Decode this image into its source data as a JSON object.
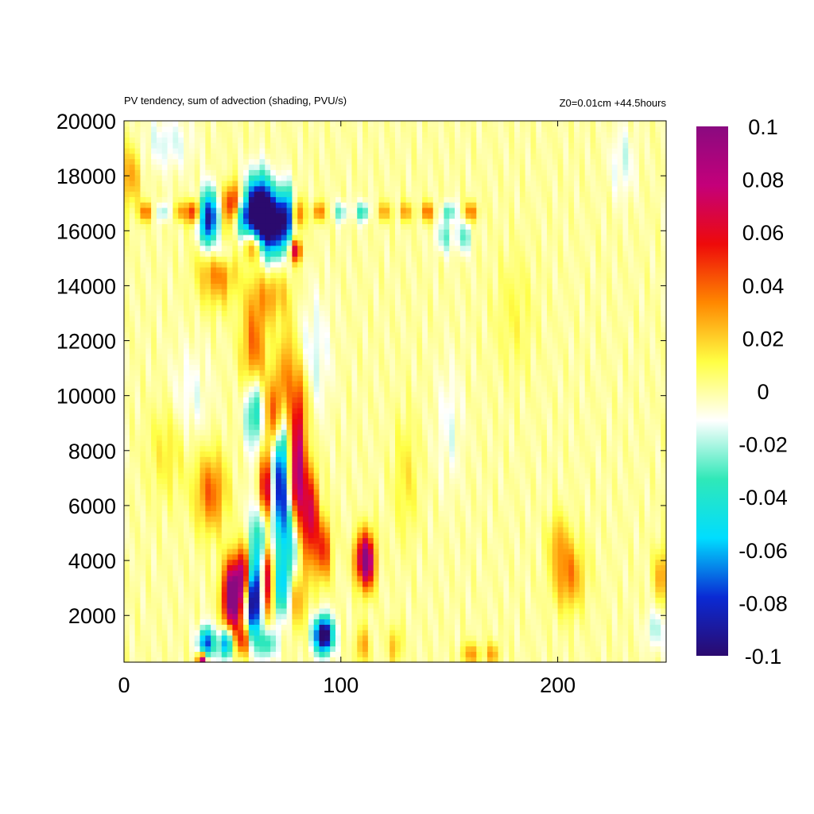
{
  "chart_data": {
    "type": "heatmap",
    "title": "PV tendency, sum of advection (shading, PVU/s)",
    "annotation": "Z0=0.01cm   +44.5hours",
    "xlabel": "",
    "ylabel": "",
    "xlim": [
      0,
      250
    ],
    "ylim": [
      300,
      20000
    ],
    "x_ticks": [
      0,
      100,
      200
    ],
    "x_tick_labels": [
      "0",
      "100",
      "200"
    ],
    "y_ticks": [
      2000,
      4000,
      6000,
      8000,
      10000,
      12000,
      14000,
      16000,
      18000,
      20000
    ],
    "y_tick_labels": [
      "2000",
      "4000",
      "6000",
      "8000",
      "10000",
      "12000",
      "14000",
      "16000",
      "18000",
      "20000"
    ],
    "grid": false,
    "colorbar": {
      "range": [
        -0.1,
        0.1
      ],
      "ticks": [
        0.1,
        0.08,
        0.06,
        0.04,
        0.02,
        0,
        -0.02,
        -0.04,
        -0.06,
        -0.08,
        -0.1
      ],
      "tick_labels": [
        "0.1",
        "0.08",
        "0.06",
        "0.04",
        "0.02",
        "0",
        "-0.02",
        "-0.04",
        "-0.06",
        "-0.08",
        "-0.1"
      ],
      "colors": [
        "#2b0a6e",
        "#0a2ad4",
        "#00ddff",
        "#2fe8b8",
        "#ffffff",
        "#ffff44",
        "#ff8800",
        "#ee0a0a",
        "#c4007a",
        "#8a0a80"
      ]
    },
    "grid_resolution": {
      "nx": 100,
      "ny": 100
    },
    "features": [
      {
        "x": 3,
        "y": 18000,
        "amp": 0.03,
        "sx": 3,
        "sy": 800
      },
      {
        "x": 20,
        "y": 19200,
        "amp": -0.015,
        "sx": 8,
        "sy": 700
      },
      {
        "x": 10,
        "y": 16700,
        "amp": 0.04,
        "sx": 2,
        "sy": 250
      },
      {
        "x": 18,
        "y": 16700,
        "amp": -0.025,
        "sx": 2,
        "sy": 250
      },
      {
        "x": 26,
        "y": 16700,
        "amp": 0.03,
        "sx": 2,
        "sy": 250
      },
      {
        "x": 32,
        "y": 16700,
        "amp": 0.06,
        "sx": 2,
        "sy": 300
      },
      {
        "x": 39,
        "y": 16400,
        "amp": -0.1,
        "sx": 3,
        "sy": 700
      },
      {
        "x": 45,
        "y": 15200,
        "amp": -0.03,
        "sx": 4,
        "sy": 400
      },
      {
        "x": 50,
        "y": 17000,
        "amp": 0.06,
        "sx": 3,
        "sy": 500
      },
      {
        "x": 55,
        "y": 16500,
        "amp": -0.05,
        "sx": 3,
        "sy": 500
      },
      {
        "x": 62,
        "y": 16800,
        "amp": -0.12,
        "sx": 4,
        "sy": 800
      },
      {
        "x": 68,
        "y": 16200,
        "amp": -0.1,
        "sx": 4,
        "sy": 800
      },
      {
        "x": 75,
        "y": 16500,
        "amp": -0.08,
        "sx": 2.5,
        "sy": 700
      },
      {
        "x": 80,
        "y": 16600,
        "amp": 0.05,
        "sx": 2,
        "sy": 400
      },
      {
        "x": 60,
        "y": 15500,
        "amp": 0.05,
        "sx": 3,
        "sy": 400
      },
      {
        "x": 79,
        "y": 15300,
        "amp": 0.07,
        "sx": 2,
        "sy": 300
      },
      {
        "x": 90,
        "y": 16700,
        "amp": 0.04,
        "sx": 2,
        "sy": 250
      },
      {
        "x": 100,
        "y": 16700,
        "amp": -0.03,
        "sx": 2,
        "sy": 250
      },
      {
        "x": 110,
        "y": 16700,
        "amp": -0.04,
        "sx": 2,
        "sy": 250
      },
      {
        "x": 120,
        "y": 16700,
        "amp": 0.03,
        "sx": 2,
        "sy": 250
      },
      {
        "x": 130,
        "y": 16700,
        "amp": 0.03,
        "sx": 2,
        "sy": 250
      },
      {
        "x": 140,
        "y": 16700,
        "amp": 0.04,
        "sx": 2,
        "sy": 250
      },
      {
        "x": 150,
        "y": 16700,
        "amp": -0.035,
        "sx": 2,
        "sy": 250
      },
      {
        "x": 160,
        "y": 16700,
        "amp": 0.04,
        "sx": 2,
        "sy": 250
      },
      {
        "x": 148,
        "y": 15800,
        "amp": -0.025,
        "sx": 3,
        "sy": 400
      },
      {
        "x": 157,
        "y": 15800,
        "amp": -0.03,
        "sx": 2,
        "sy": 400
      },
      {
        "x": 43,
        "y": 14700,
        "amp": 0.04,
        "sx": 6,
        "sy": 900
      },
      {
        "x": 68,
        "y": 13700,
        "amp": 0.025,
        "sx": 6,
        "sy": 700
      },
      {
        "x": 60,
        "y": 11700,
        "amp": 0.04,
        "sx": 4,
        "sy": 1400
      },
      {
        "x": 75,
        "y": 11000,
        "amp": 0.03,
        "sx": 3,
        "sy": 1200
      },
      {
        "x": 88,
        "y": 11500,
        "amp": -0.015,
        "sx": 5,
        "sy": 1500
      },
      {
        "x": 60,
        "y": 9500,
        "amp": -0.05,
        "sx": 3,
        "sy": 900
      },
      {
        "x": 70,
        "y": 9300,
        "amp": 0.06,
        "sx": 3,
        "sy": 1000
      },
      {
        "x": 81,
        "y": 9800,
        "amp": 0.03,
        "sx": 3,
        "sy": 1000
      },
      {
        "x": 40,
        "y": 6500,
        "amp": 0.04,
        "sx": 5,
        "sy": 1000
      },
      {
        "x": 65,
        "y": 6500,
        "amp": 0.09,
        "sx": 2.5,
        "sy": 900
      },
      {
        "x": 72,
        "y": 7000,
        "amp": -0.09,
        "sx": 2.5,
        "sy": 1800
      },
      {
        "x": 80,
        "y": 6800,
        "amp": 0.1,
        "sx": 2.5,
        "sy": 1700
      },
      {
        "x": 86,
        "y": 5600,
        "amp": 0.07,
        "sx": 2.5,
        "sy": 1200
      },
      {
        "x": 92,
        "y": 4400,
        "amp": 0.05,
        "sx": 2.5,
        "sy": 800
      },
      {
        "x": 63,
        "y": 4800,
        "amp": -0.06,
        "sx": 3,
        "sy": 1500
      },
      {
        "x": 78,
        "y": 4900,
        "amp": -0.06,
        "sx": 3,
        "sy": 1200
      },
      {
        "x": 112,
        "y": 4000,
        "amp": 0.1,
        "sx": 2.5,
        "sy": 700
      },
      {
        "x": 108,
        "y": 4100,
        "amp": 0.03,
        "sx": 2,
        "sy": 600
      },
      {
        "x": 50,
        "y": 2700,
        "amp": 0.12,
        "sx": 3,
        "sy": 900
      },
      {
        "x": 55,
        "y": 3500,
        "amp": 0.07,
        "sx": 2,
        "sy": 700
      },
      {
        "x": 60,
        "y": 2500,
        "amp": -0.1,
        "sx": 2.5,
        "sy": 900
      },
      {
        "x": 66,
        "y": 3300,
        "amp": 0.09,
        "sx": 2.5,
        "sy": 1000
      },
      {
        "x": 72,
        "y": 3000,
        "amp": -0.05,
        "sx": 3,
        "sy": 800
      },
      {
        "x": 80,
        "y": 2700,
        "amp": 0.03,
        "sx": 3,
        "sy": 800
      },
      {
        "x": 38,
        "y": 1000,
        "amp": -0.08,
        "sx": 2.5,
        "sy": 400
      },
      {
        "x": 47,
        "y": 1000,
        "amp": -0.08,
        "sx": 2,
        "sy": 400
      },
      {
        "x": 55,
        "y": 1100,
        "amp": 0.05,
        "sx": 2,
        "sy": 400
      },
      {
        "x": 36,
        "y": 400,
        "amp": 0.1,
        "sx": 1.5,
        "sy": 200
      },
      {
        "x": 92,
        "y": 1300,
        "amp": -0.12,
        "sx": 3,
        "sy": 450
      },
      {
        "x": 66,
        "y": 1000,
        "amp": -0.04,
        "sx": 3,
        "sy": 400
      },
      {
        "x": 110,
        "y": 900,
        "amp": 0.03,
        "sx": 2,
        "sy": 500
      },
      {
        "x": 125,
        "y": 900,
        "amp": 0.025,
        "sx": 2,
        "sy": 500
      },
      {
        "x": 160,
        "y": 600,
        "amp": 0.03,
        "sx": 3,
        "sy": 300
      },
      {
        "x": 170,
        "y": 600,
        "amp": 0.03,
        "sx": 2,
        "sy": 300
      },
      {
        "x": 205,
        "y": 3500,
        "amp": 0.035,
        "sx": 5,
        "sy": 900
      },
      {
        "x": 200,
        "y": 4800,
        "amp": 0.02,
        "sx": 3,
        "sy": 700
      },
      {
        "x": 248,
        "y": 3500,
        "amp": 0.03,
        "sx": 2.5,
        "sy": 700
      },
      {
        "x": 245,
        "y": 1500,
        "amp": -0.02,
        "sx": 3,
        "sy": 500
      },
      {
        "x": 20,
        "y": 8000,
        "amp": 0.015,
        "sx": 6,
        "sy": 1200
      },
      {
        "x": 30,
        "y": 10000,
        "amp": -0.012,
        "sx": 6,
        "sy": 1200
      },
      {
        "x": 130,
        "y": 7000,
        "amp": 0.015,
        "sx": 4,
        "sy": 1500
      },
      {
        "x": 150,
        "y": 9000,
        "amp": -0.012,
        "sx": 4,
        "sy": 1500
      },
      {
        "x": 180,
        "y": 13000,
        "amp": 0.01,
        "sx": 6,
        "sy": 1500
      },
      {
        "x": 230,
        "y": 18500,
        "amp": -0.015,
        "sx": 4,
        "sy": 900
      }
    ]
  }
}
